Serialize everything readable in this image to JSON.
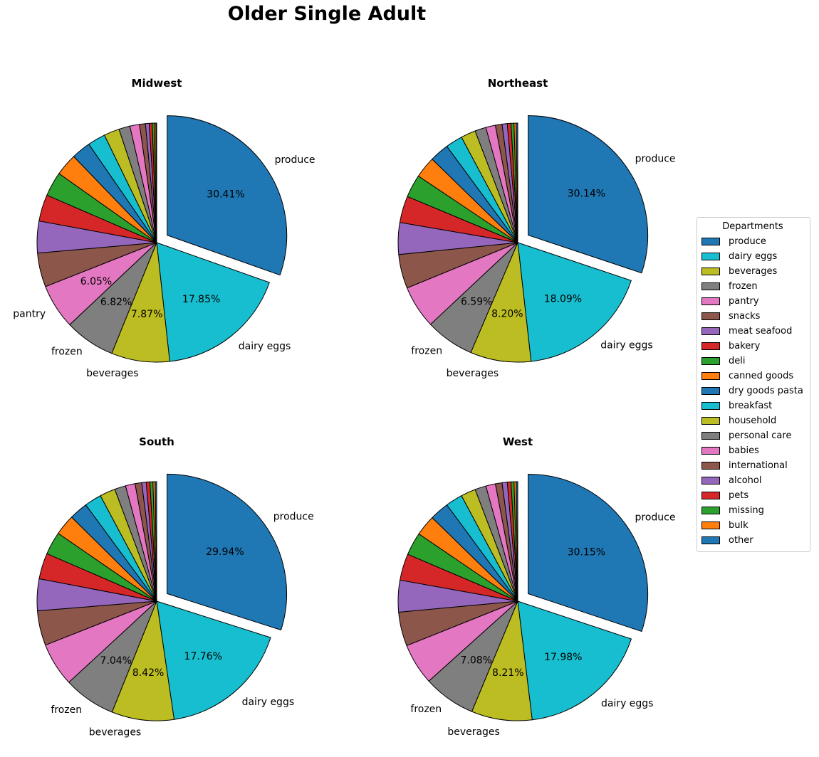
{
  "title": "Older Single Adult",
  "legend": {
    "title": "Departments",
    "placement": "right"
  },
  "departments": [
    "produce",
    "dairy eggs",
    "beverages",
    "frozen",
    "pantry",
    "snacks",
    "meat seafood",
    "bakery",
    "deli",
    "canned goods",
    "dry goods pasta",
    "breakfast",
    "household",
    "personal care",
    "babies",
    "international",
    "alcohol",
    "pets",
    "missing",
    "bulk",
    "other"
  ],
  "colors": [
    "#1f77b4",
    "#17becf",
    "#bcbd22",
    "#7f7f7f",
    "#e377c2",
    "#8c564b",
    "#9467bd",
    "#d62728",
    "#2ca02c",
    "#ff7f0e",
    "#1f77b4",
    "#17becf",
    "#bcbd22",
    "#7f7f7f",
    "#e377c2",
    "#8c564b",
    "#9467bd",
    "#d62728",
    "#2ca02c",
    "#ff7f0e",
    "#1f77b4"
  ],
  "chart_data": [
    {
      "type": "pie",
      "title": "Midwest",
      "labels": [
        "produce",
        "dairy eggs",
        "beverages",
        "frozen",
        "pantry",
        "snacks",
        "meat seafood",
        "bakery",
        "deli",
        "canned goods",
        "dry goods pasta",
        "breakfast",
        "household",
        "personal care",
        "babies",
        "international",
        "alcohol",
        "pets",
        "missing",
        "bulk",
        "other"
      ],
      "values": [
        30.41,
        17.85,
        7.87,
        6.82,
        6.05,
        4.6,
        4.3,
        3.6,
        3.3,
        3.0,
        2.6,
        2.4,
        2.1,
        1.5,
        1.3,
        0.8,
        0.5,
        0.4,
        0.3,
        0.2,
        0.1
      ],
      "shown_labels": [
        "produce",
        "dairy eggs",
        "beverages",
        "frozen",
        "pantry"
      ],
      "autopct_labels": [
        "30.41%",
        "17.85%",
        "7.87%",
        "6.82%",
        "6.05%"
      ],
      "explode": "produce"
    },
    {
      "type": "pie",
      "title": "Northeast",
      "labels": [
        "produce",
        "dairy eggs",
        "beverages",
        "frozen",
        "pantry",
        "snacks",
        "meat seafood",
        "bakery",
        "deli",
        "canned goods",
        "dry goods pasta",
        "breakfast",
        "household",
        "personal care",
        "babies",
        "international",
        "alcohol",
        "pets",
        "missing",
        "bulk",
        "other"
      ],
      "values": [
        30.14,
        18.09,
        8.2,
        6.59,
        5.8,
        4.6,
        4.3,
        3.6,
        3.1,
        2.9,
        2.6,
        2.3,
        2.0,
        1.5,
        1.3,
        0.9,
        0.7,
        0.5,
        0.4,
        0.3,
        0.2
      ],
      "shown_labels": [
        "produce",
        "dairy eggs",
        "beverages",
        "frozen"
      ],
      "autopct_labels": [
        "30.14%",
        "18.09%",
        "8.20%",
        "6.59%"
      ],
      "explode": "produce"
    },
    {
      "type": "pie",
      "title": "South",
      "labels": [
        "produce",
        "dairy eggs",
        "beverages",
        "frozen",
        "pantry",
        "snacks",
        "meat seafood",
        "bakery",
        "deli",
        "canned goods",
        "dry goods pasta",
        "breakfast",
        "household",
        "personal care",
        "babies",
        "international",
        "alcohol",
        "pets",
        "missing",
        "bulk",
        "other"
      ],
      "values": [
        29.94,
        17.76,
        8.42,
        7.04,
        5.9,
        4.7,
        4.3,
        3.5,
        3.1,
        2.8,
        2.5,
        2.3,
        2.1,
        1.5,
        1.3,
        0.9,
        0.6,
        0.5,
        0.4,
        0.3,
        0.2
      ],
      "shown_labels": [
        "produce",
        "dairy eggs",
        "beverages",
        "frozen"
      ],
      "autopct_labels": [
        "29.94%",
        "17.76%",
        "8.42%",
        "7.04%"
      ],
      "explode": "produce"
    },
    {
      "type": "pie",
      "title": "West",
      "labels": [
        "produce",
        "dairy eggs",
        "beverages",
        "frozen",
        "pantry",
        "snacks",
        "meat seafood",
        "bakery",
        "deli",
        "canned goods",
        "dry goods pasta",
        "breakfast",
        "household",
        "personal care",
        "babies",
        "international",
        "alcohol",
        "pets",
        "missing",
        "bulk",
        "other"
      ],
      "values": [
        30.15,
        17.98,
        8.21,
        7.08,
        5.6,
        4.6,
        4.3,
        3.6,
        3.1,
        2.8,
        2.6,
        2.3,
        2.0,
        1.5,
        1.3,
        0.9,
        0.7,
        0.5,
        0.4,
        0.3,
        0.2
      ],
      "shown_labels": [
        "produce",
        "dairy eggs",
        "beverages",
        "frozen"
      ],
      "autopct_labels": [
        "30.15%",
        "17.98%",
        "8.21%",
        "7.08%"
      ],
      "explode": "produce"
    }
  ]
}
